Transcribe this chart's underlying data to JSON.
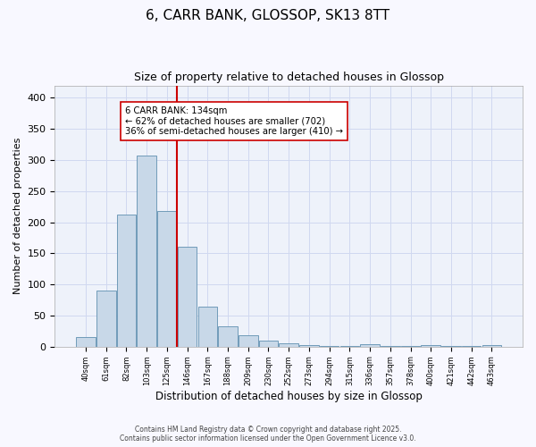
{
  "title_line1": "6, CARR BANK, GLOSSOP, SK13 8TT",
  "title_line2": "Size of property relative to detached houses in Glossop",
  "xlabel": "Distribution of detached houses by size in Glossop",
  "ylabel": "Number of detached properties",
  "bar_labels": [
    "40sqm",
    "61sqm",
    "82sqm",
    "103sqm",
    "125sqm",
    "146sqm",
    "167sqm",
    "188sqm",
    "209sqm",
    "230sqm",
    "252sqm",
    "273sqm",
    "294sqm",
    "315sqm",
    "336sqm",
    "357sqm",
    "378sqm",
    "400sqm",
    "421sqm",
    "442sqm",
    "463sqm"
  ],
  "bar_values": [
    15,
    90,
    212,
    307,
    218,
    160,
    65,
    32,
    18,
    9,
    5,
    3,
    1,
    1,
    4,
    1,
    1,
    3,
    1,
    1,
    3
  ],
  "bar_color": "#c8d8e8",
  "bar_edge_color": "#6090b0",
  "vline_x": 4.5,
  "vline_color": "#cc0000",
  "annotation_text": "6 CARR BANK: 134sqm\n← 62% of detached houses are smaller (702)\n36% of semi-detached houses are larger (410) →",
  "annotation_box_color": "#ffffff",
  "annotation_box_edge": "#cc0000",
  "ylim": [
    0,
    420
  ],
  "yticks": [
    0,
    50,
    100,
    150,
    200,
    250,
    300,
    350,
    400
  ],
  "grid_color": "#d0d8f0",
  "bg_color": "#eef2fa",
  "fig_bg_color": "#f8f8ff",
  "footer_line1": "Contains HM Land Registry data © Crown copyright and database right 2025.",
  "footer_line2": "Contains public sector information licensed under the Open Government Licence v3.0."
}
